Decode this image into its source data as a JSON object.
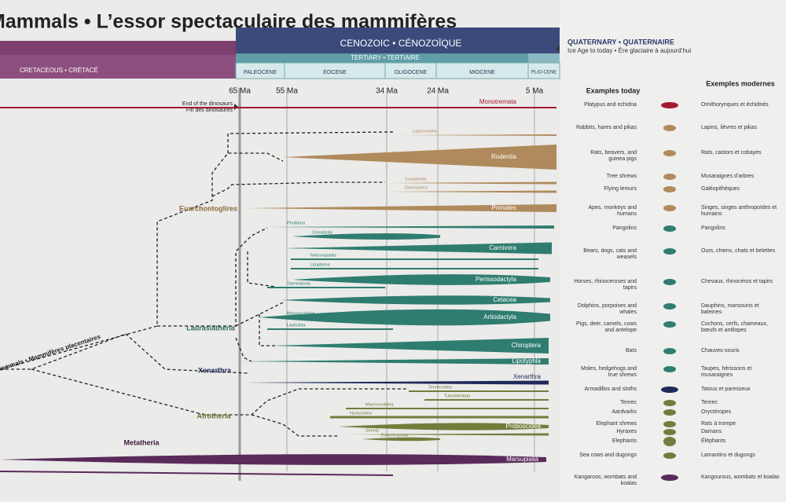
{
  "title": "Mammals • L’essor spectaculaire des mammifères",
  "header": {
    "cretaceous": "CRETACEOUS • CRÉTACÉ",
    "cenozoic": "CENOZOIC • CÉNOZOÏQUE",
    "tertiary": "TERTIARY • TERTIAIRE",
    "quaternary": "QUATERNARY • QUATERNAIRE",
    "quaternary_note": "Ice Age to today • Ère glaciaire à aujourd’hui",
    "epochs": [
      "PALEOCENE",
      "EOCENE",
      "OLIGOCENE",
      "MIOCENE",
      "PLIO-CENE"
    ]
  },
  "time_marks": [
    "65 Ma",
    "55 Ma",
    "34 Ma",
    "24 Ma",
    "5 Ma"
  ],
  "extinction": [
    "End of the dinosaurs",
    "Fin des dinosaures"
  ],
  "columns": {
    "en": "Examples today",
    "fr": "Exemples modernes"
  },
  "clades": [
    "Euarchontoglires",
    "Laurasiatheria",
    "Xenarthra",
    "Afrotheria",
    "Mammals • Mammifères placentaires",
    "Metatheria"
  ],
  "taxa": [
    "Monotremata",
    "Lagomorpha",
    "Rodentia",
    "Scandentia",
    "Dermoptera",
    "Primates",
    "Pholidota",
    "Creodonta",
    "Carnivora",
    "Notoungulata",
    "Litopterna",
    "Perissodactyla",
    "Taeniodonta",
    "Cetacea",
    "Mesonychidae",
    "Artiodactyla",
    "Leptictida",
    "Chiroptera",
    "Lipotyphla",
    "Xenarthra",
    "Tenrecoidea",
    "Tubulidentata",
    "Macroscelidea",
    "Hyracoidea",
    "Proboscidea",
    "Sirenia",
    "Embrithopoda",
    "Marsupialia"
  ],
  "examples": [
    {
      "en": "Platypus and echidna",
      "fr": "Ornithorynques et échidnés"
    },
    {
      "en": "Rabbits, hares and pikas",
      "fr": "Lapins, lièvres et pikas"
    },
    {
      "en": "Rats, beavers, and guinea pigs",
      "fr": "Rats, castors et cobayes"
    },
    {
      "en": "Tree shrews",
      "fr": "Musaraignes d’arbres"
    },
    {
      "en": "Flying lemurs",
      "fr": "Galéopithèques"
    },
    {
      "en": "Apes, monkeys and humans",
      "fr": "Singes, singes anthropoïdes et humains"
    },
    {
      "en": "Pangolins",
      "fr": "Pangolins"
    },
    {
      "en": "Bears, dogs, cats and weasels",
      "fr": "Ours, chiens, chats et belettes"
    },
    {
      "en": "Horses, rhinoceroses and tapirs",
      "fr": "Chevaux, rhinocéros et tapirs"
    },
    {
      "en": "Dolphins, porpoises and whales",
      "fr": "Dauphins, marsouins et baleines"
    },
    {
      "en": "Pigs, deer, camels, cows and antelope",
      "fr": "Cochons, cerfs, chameaux, bœufs et antilopes"
    },
    {
      "en": "Bats",
      "fr": "Chauves-souris"
    },
    {
      "en": "Moles, hedgehogs and true shrews",
      "fr": "Taupes, hérissons et musaraignes"
    },
    {
      "en": "Armadillos and sloths",
      "fr": "Tatous et paresseux"
    },
    {
      "en": "Tenrec",
      "fr": "Tenrec"
    },
    {
      "en": "Aardvarks",
      "fr": "Oryctéropes"
    },
    {
      "en": "Elephant shrews",
      "fr": "Rats à trompe"
    },
    {
      "en": "Hyraxes",
      "fr": "Damans"
    },
    {
      "en": "Elephants",
      "fr": "Éléphants"
    },
    {
      "en": "Sea cows and dugongs",
      "fr": "Lamantins et dugongs"
    },
    {
      "en": "Kangaroos, wombats and koalas",
      "fr": "Kangourous, wombats et koalas"
    }
  ]
}
